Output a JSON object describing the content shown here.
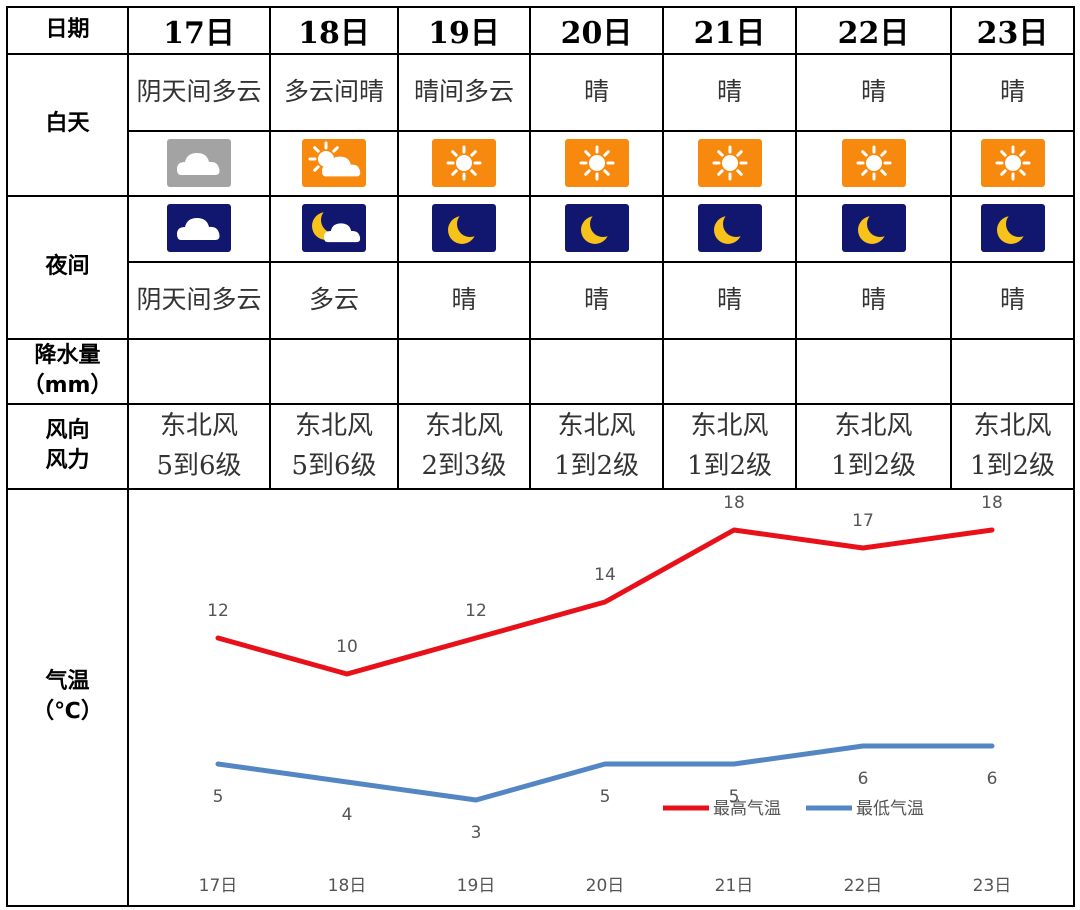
{
  "table": {
    "row_labels": {
      "date": "日期",
      "day": "白天",
      "night": "夜间",
      "precip": "降水量\n（mm）",
      "wind": "风向\n风力",
      "temp": "气温\n（℃）"
    },
    "days": [
      {
        "date": "17日",
        "day_weather": "阴天间多云",
        "day_icon": "overcast-icon",
        "night_icon": "night-overcast-icon",
        "night_weather": "阴天间多云",
        "precip": "",
        "wind_dir": "东北风",
        "wind_force": "5到6级"
      },
      {
        "date": "18日",
        "day_weather": "多云间晴",
        "day_icon": "partly-cloudy-icon",
        "night_icon": "night-partly-cloudy-icon",
        "night_weather": "多云",
        "precip": "",
        "wind_dir": "东北风",
        "wind_force": "5到6级"
      },
      {
        "date": "19日",
        "day_weather": "晴间多云",
        "day_icon": "sun-icon",
        "night_icon": "moon-icon",
        "night_weather": "晴",
        "precip": "",
        "wind_dir": "东北风",
        "wind_force": "2到3级"
      },
      {
        "date": "20日",
        "day_weather": "晴",
        "day_icon": "sun-icon",
        "night_icon": "moon-icon",
        "night_weather": "晴",
        "precip": "",
        "wind_dir": "东北风",
        "wind_force": "1到2级"
      },
      {
        "date": "21日",
        "day_weather": "晴",
        "day_icon": "sun-icon",
        "night_icon": "moon-icon",
        "night_weather": "晴",
        "precip": "",
        "wind_dir": "东北风",
        "wind_force": "1到2级"
      },
      {
        "date": "22日",
        "day_weather": "晴",
        "day_icon": "sun-icon",
        "night_icon": "moon-icon",
        "night_weather": "晴",
        "precip": "",
        "wind_dir": "东北风",
        "wind_force": "1到2级"
      },
      {
        "date": "23日",
        "day_weather": "晴",
        "day_icon": "sun-icon",
        "night_icon": "moon-icon",
        "night_weather": "晴",
        "precip": "",
        "wind_dir": "东北风",
        "wind_force": "1到2级"
      }
    ],
    "colors": {
      "sun_bg": "#f7890f",
      "overcast_bg": "#a3a3a3",
      "night_bg": "#11166e",
      "moon": "#f7c21a"
    }
  },
  "chart_data": {
    "type": "line",
    "categories": [
      "17日",
      "18日",
      "19日",
      "20日",
      "21日",
      "22日",
      "23日"
    ],
    "series": [
      {
        "name": "最高气温",
        "values": [
          12,
          10,
          12,
          14,
          18,
          17,
          18
        ],
        "color": "#e8111a"
      },
      {
        "name": "最低气温",
        "values": [
          5,
          4,
          3,
          5,
          5,
          6,
          6
        ],
        "color": "#5586c4"
      }
    ],
    "grid": false,
    "legend_position": "bottom-right"
  }
}
